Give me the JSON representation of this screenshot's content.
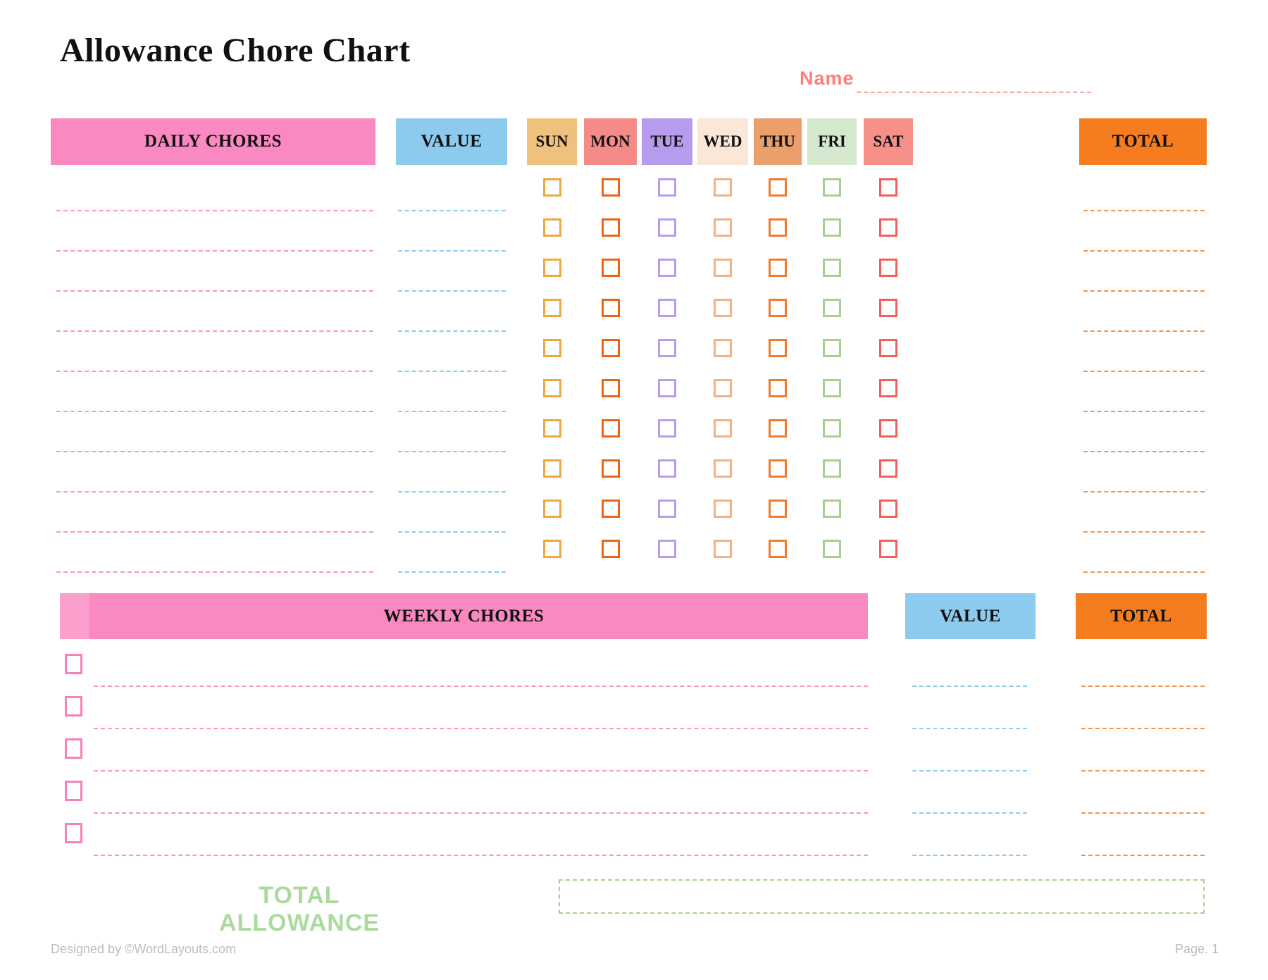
{
  "page": {
    "title": "Allowance Chore Chart",
    "name_label": "Name",
    "name_value": "",
    "total_allowance_label": "TOTAL ALLOWANCE",
    "total_allowance_value": "",
    "footer_left": "Designed by ©WordLayouts.com",
    "footer_right": "Page. 1"
  },
  "daily": {
    "chores_header": "DAILY CHORES",
    "value_header": "VALUE",
    "total_header": "TOTAL",
    "days": [
      {
        "label": "SUN",
        "header_bg": "#EEC17D",
        "checkbox_color": "#F0A83C"
      },
      {
        "label": "MON",
        "header_bg": "#F58B88",
        "checkbox_color": "#ED6414"
      },
      {
        "label": "TUE",
        "header_bg": "#B79CEE",
        "checkbox_color": "#B79CEF"
      },
      {
        "label": "WED",
        "header_bg": "#FBE7D8",
        "checkbox_color": "#F5B183"
      },
      {
        "label": "THU",
        "header_bg": "#EBA06B",
        "checkbox_color": "#ED7D31"
      },
      {
        "label": "FRI",
        "header_bg": "#D4E8CE",
        "checkbox_color": "#A8D08D"
      },
      {
        "label": "SAT",
        "header_bg": "#F8908A",
        "checkbox_color": "#F15F5F"
      }
    ],
    "rows": [
      {
        "chore": "",
        "value": "",
        "days": [
          false,
          false,
          false,
          false,
          false,
          false,
          false
        ],
        "total": ""
      },
      {
        "chore": "",
        "value": "",
        "days": [
          false,
          false,
          false,
          false,
          false,
          false,
          false
        ],
        "total": ""
      },
      {
        "chore": "",
        "value": "",
        "days": [
          false,
          false,
          false,
          false,
          false,
          false,
          false
        ],
        "total": ""
      },
      {
        "chore": "",
        "value": "",
        "days": [
          false,
          false,
          false,
          false,
          false,
          false,
          false
        ],
        "total": ""
      },
      {
        "chore": "",
        "value": "",
        "days": [
          false,
          false,
          false,
          false,
          false,
          false,
          false
        ],
        "total": ""
      },
      {
        "chore": "",
        "value": "",
        "days": [
          false,
          false,
          false,
          false,
          false,
          false,
          false
        ],
        "total": ""
      },
      {
        "chore": "",
        "value": "",
        "days": [
          false,
          false,
          false,
          false,
          false,
          false,
          false
        ],
        "total": ""
      },
      {
        "chore": "",
        "value": "",
        "days": [
          false,
          false,
          false,
          false,
          false,
          false,
          false
        ],
        "total": ""
      },
      {
        "chore": "",
        "value": "",
        "days": [
          false,
          false,
          false,
          false,
          false,
          false,
          false
        ],
        "total": ""
      },
      {
        "chore": "",
        "value": "",
        "days": [
          false,
          false,
          false,
          false,
          false,
          false,
          false
        ],
        "total": ""
      }
    ]
  },
  "weekly": {
    "chores_header": "WEEKLY CHORES",
    "value_header": "VALUE",
    "total_header": "TOTAL",
    "rows": [
      {
        "done": false,
        "chore": "",
        "value": "",
        "total": ""
      },
      {
        "done": false,
        "chore": "",
        "value": "",
        "total": ""
      },
      {
        "done": false,
        "chore": "",
        "value": "",
        "total": ""
      },
      {
        "done": false,
        "chore": "",
        "value": "",
        "total": ""
      },
      {
        "done": false,
        "chore": "",
        "value": "",
        "total": ""
      }
    ]
  },
  "colors": {
    "pink_header": "#F989C0",
    "pink_header_light": "#FA9FCC",
    "blue_header": "#8CCBEE",
    "orange_header": "#F57D1F",
    "chore_line": "#F895C2",
    "value_line": "#8CCBEE",
    "total_line": "#F0944F",
    "weekly_checkbox": "#F881BB",
    "name_text": "#F87F7F",
    "name_line": "#F9A3A3",
    "green_text": "#ACDA9E",
    "green_box_border": "#A9D18E",
    "footer_text": "#BDBDBD"
  }
}
